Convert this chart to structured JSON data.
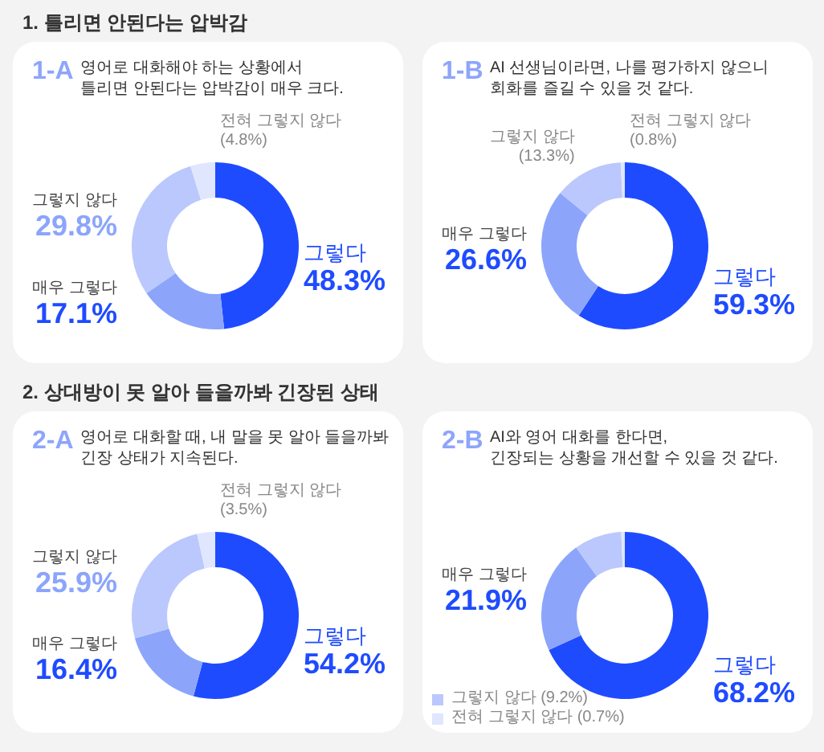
{
  "chart_data": [
    {
      "type": "donut",
      "annotations": [
        "1. 틀리면 안된다는 압박감"
      ],
      "title": "1-A",
      "subtitle": "영어로 대화해야 하는 상황에서\n틀리면 안된다는 압박감이 매우 크다.",
      "categories": [
        "그렇다",
        "매우 그렇다",
        "그렇지 않다",
        "전혀 그렇지 않다"
      ],
      "values": [
        48.3,
        17.1,
        29.8,
        4.8
      ],
      "value_labels": [
        "48.3%",
        "17.1%",
        "29.8%",
        "(4.8%)"
      ],
      "colors": [
        "#1f4bff",
        "#8ca5fb",
        "#bac8fd",
        "#dfe6fe"
      ]
    },
    {
      "type": "donut",
      "title": "1-B",
      "subtitle": "AI 선생님이라면, 나를 평가하지 않으니\n회화를 즐길 수 있을 것 같다.",
      "categories": [
        "그렇다",
        "매우 그렇다",
        "그렇지 않다",
        "전혀 그렇지 않다"
      ],
      "values": [
        59.3,
        26.6,
        13.3,
        0.8
      ],
      "value_labels": [
        "59.3%",
        "26.6%",
        "(13.3%)",
        "(0.8%)"
      ],
      "colors": [
        "#1f4bff",
        "#8ca5fb",
        "#bac8fd",
        "#dfe6fe"
      ]
    },
    {
      "type": "donut",
      "annotations": [
        "2. 상대방이 못 알아 들을까봐 긴장된 상태"
      ],
      "title": "2-A",
      "subtitle": "영어로 대화할 때, 내 말을 못 알아 들을까봐\n긴장 상태가 지속된다.",
      "categories": [
        "그렇다",
        "매우 그렇다",
        "그렇지 않다",
        "전혀 그렇지 않다"
      ],
      "values": [
        54.2,
        16.4,
        25.9,
        3.5
      ],
      "value_labels": [
        "54.2%",
        "16.4%",
        "25.9%",
        "(3.5%)"
      ],
      "colors": [
        "#1f4bff",
        "#8ca5fb",
        "#bac8fd",
        "#dfe6fe"
      ]
    },
    {
      "type": "donut",
      "title": "2-B",
      "subtitle": "AI와 영어 대화를 한다면,\n긴장되는 상황을 개선할 수 있을 것 같다.",
      "categories": [
        "그렇다",
        "매우 그렇다",
        "그렇지 않다",
        "전혀 그렇지 않다"
      ],
      "values": [
        68.2,
        21.9,
        9.2,
        0.7
      ],
      "value_labels": [
        "68.2%",
        "21.9%",
        "(9.2%)",
        "(0.7%)"
      ],
      "colors": [
        "#1f4bff",
        "#8ca5fb",
        "#bac8fd",
        "#dfe6fe"
      ],
      "legend": "bottom left"
    }
  ]
}
